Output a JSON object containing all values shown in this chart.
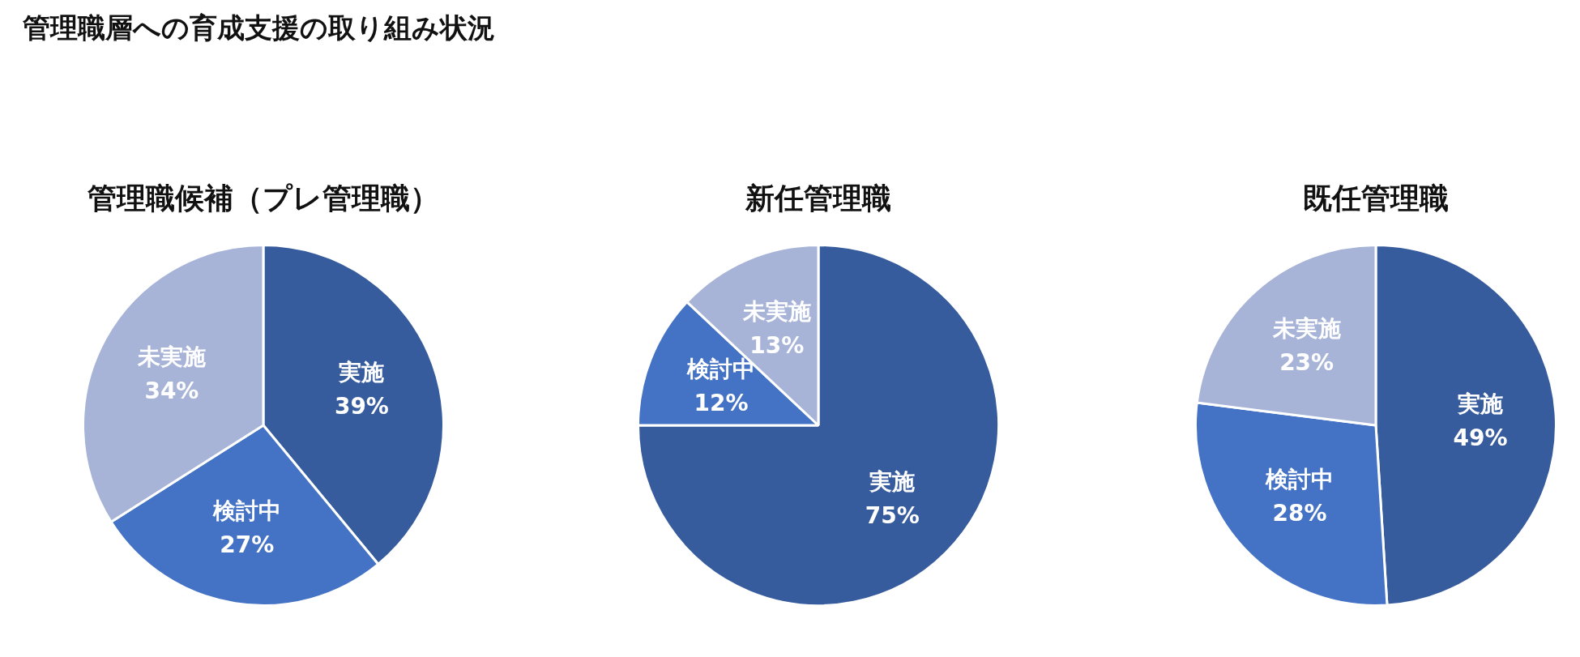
{
  "chart_data": [
    {
      "type": "other",
      "title": "管理職層への育成支援の取り組み状況"
    },
    {
      "type": "pie",
      "title": "管理職候補（プレ管理職）",
      "categories": [
        "実施",
        "検討中",
        "未実施"
      ],
      "values": [
        39,
        27,
        34
      ],
      "colors": [
        "#375c9e",
        "#4472c4",
        "#a7b4d8"
      ],
      "value_labels": [
        "39%",
        "27%",
        "34%"
      ]
    },
    {
      "type": "pie",
      "title": "新任管理職",
      "categories": [
        "実施",
        "検討中",
        "未実施"
      ],
      "values": [
        75,
        12,
        13
      ],
      "colors": [
        "#375c9e",
        "#4472c4",
        "#a7b4d8"
      ],
      "value_labels": [
        "75%",
        "12%",
        "13%"
      ]
    },
    {
      "type": "pie",
      "title": "既任管理職",
      "categories": [
        "実施",
        "検討中",
        "未実施"
      ],
      "values": [
        49,
        28,
        23
      ],
      "colors": [
        "#375c9e",
        "#4472c4",
        "#a7b4d8"
      ],
      "value_labels": [
        "49%",
        "28%",
        "23%"
      ]
    }
  ]
}
